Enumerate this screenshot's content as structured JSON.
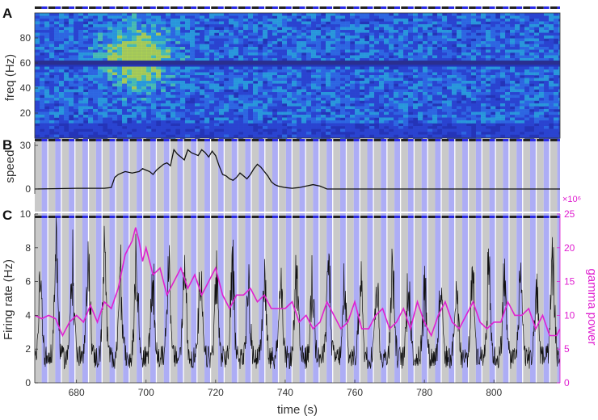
{
  "figure": {
    "panel_labels": [
      "A",
      "B",
      "C"
    ],
    "bands": {
      "start": 668,
      "period": 3.9,
      "gray_width": 2.0,
      "blue_width": 1.6,
      "gray_color": "#c9c9c9",
      "blue_color": "#adadf5",
      "top_marker_dark": "#222222",
      "top_marker_blue": "#2a2ae6"
    }
  },
  "chart_data": [
    {
      "type": "heatmap",
      "panel": "A",
      "ylabel": "freq (Hz)",
      "xlim": [
        668,
        819
      ],
      "ylim": [
        0,
        100
      ],
      "yticks": [
        20,
        40,
        60,
        80
      ],
      "description_values": {
        "line_noise_freq": 60,
        "hotspot_time": 697,
        "hotspot_freq": 65
      },
      "colormap": [
        "#1b2aa8",
        "#2b47d4",
        "#2f6ee8",
        "#2aa7e0",
        "#4fd0b0",
        "#b8e04a"
      ]
    },
    {
      "type": "line",
      "panel": "B",
      "ylabel": "speed",
      "xlim": [
        668,
        819
      ],
      "ylim": [
        0,
        30
      ],
      "yticks": [
        0,
        30
      ],
      "x": [
        668,
        680,
        688,
        690,
        691,
        692,
        693,
        694,
        696,
        698,
        699,
        700,
        701,
        702,
        703,
        704,
        705,
        706,
        707,
        708,
        709,
        710,
        711,
        712,
        713,
        714,
        715,
        716,
        717,
        718,
        719,
        720,
        721,
        722,
        723,
        724,
        725,
        726,
        727,
        728,
        729,
        730,
        731,
        732,
        733,
        734,
        735,
        736,
        737,
        738,
        740,
        742,
        744,
        746,
        748,
        750,
        751,
        752,
        754,
        760,
        790,
        819
      ],
      "values": [
        0,
        0.5,
        0.5,
        1,
        8,
        10,
        11,
        12,
        11,
        12,
        14,
        13,
        12,
        10,
        13,
        15,
        17,
        18,
        16,
        27,
        24,
        22,
        20,
        27,
        25,
        24,
        23,
        27,
        25,
        22,
        26,
        23,
        16,
        10,
        9,
        7,
        6,
        8,
        11,
        9,
        7,
        10,
        14,
        17,
        15,
        12,
        9,
        5,
        3,
        2,
        1,
        0.5,
        1,
        2,
        3,
        2,
        1,
        0,
        0,
        0,
        0,
        0
      ]
    },
    {
      "type": "line",
      "panel": "C",
      "xlabel": "time (s)",
      "ylabel": "Firing rate (Hz)",
      "y2label": "gamma power",
      "y2_multiplier": "×10⁶",
      "xlim": [
        668,
        819
      ],
      "xticks": [
        680,
        700,
        720,
        740,
        760,
        780,
        800
      ],
      "ylim": [
        0,
        10
      ],
      "yticks": [
        0,
        2,
        4,
        6,
        8,
        10
      ],
      "y2lim": [
        0,
        25
      ],
      "y2ticks": [
        0,
        5,
        10,
        15,
        20,
        25
      ],
      "series": [
        {
          "axis": "right",
          "color": "#e020d0",
          "x": [
            668,
            670,
            672,
            674,
            676,
            678,
            680,
            682,
            684,
            686,
            688,
            690,
            692,
            694,
            696,
            697,
            698,
            699,
            700,
            702,
            704,
            706,
            708,
            710,
            712,
            714,
            716,
            718,
            720,
            722,
            724,
            726,
            728,
            730,
            732,
            734,
            736,
            738,
            740,
            742,
            744,
            746,
            748,
            750,
            752,
            754,
            756,
            758,
            760,
            762,
            764,
            766,
            768,
            770,
            772,
            774,
            776,
            778,
            780,
            782,
            784,
            786,
            788,
            790,
            792,
            794,
            796,
            798,
            800,
            802,
            804,
            806,
            808,
            810,
            812,
            814,
            816,
            818,
            819
          ],
          "values": [
            10,
            9.5,
            10,
            9.5,
            7,
            9,
            10,
            9,
            11.5,
            9,
            12,
            11,
            14,
            19,
            21,
            23,
            21,
            18,
            20,
            16,
            17,
            13,
            15,
            17,
            14,
            16,
            13,
            15,
            17,
            13,
            11,
            13,
            13,
            14,
            12,
            13,
            11,
            11,
            11,
            12,
            9,
            10,
            8,
            9,
            12,
            10,
            8,
            9,
            12,
            8,
            8,
            10,
            11,
            8,
            9,
            11,
            8,
            12,
            9,
            7,
            10,
            12,
            9,
            8,
            10,
            12,
            9,
            8,
            9,
            9,
            12,
            10,
            10,
            11,
            8,
            10,
            7,
            7,
            8
          ]
        },
        {
          "axis": "left",
          "color": "#111111",
          "generated_noise": true,
          "peak_values": [
            6.9,
            9.6,
            8.6,
            9.2,
            8.7,
            7.8,
            8.4,
            7.9,
            9.1,
            8.2,
            6.9,
            7.3,
            8.2,
            6.8,
            7.6,
            7.4,
            8.3,
            7.4,
            8.5,
            6.5,
            7.9,
            7.5,
            7.8,
            7.9,
            7.1,
            6.8,
            7.6,
            7.1,
            8.0,
            7.7,
            7.4,
            6.9,
            8.0
          ]
        }
      ]
    }
  ]
}
